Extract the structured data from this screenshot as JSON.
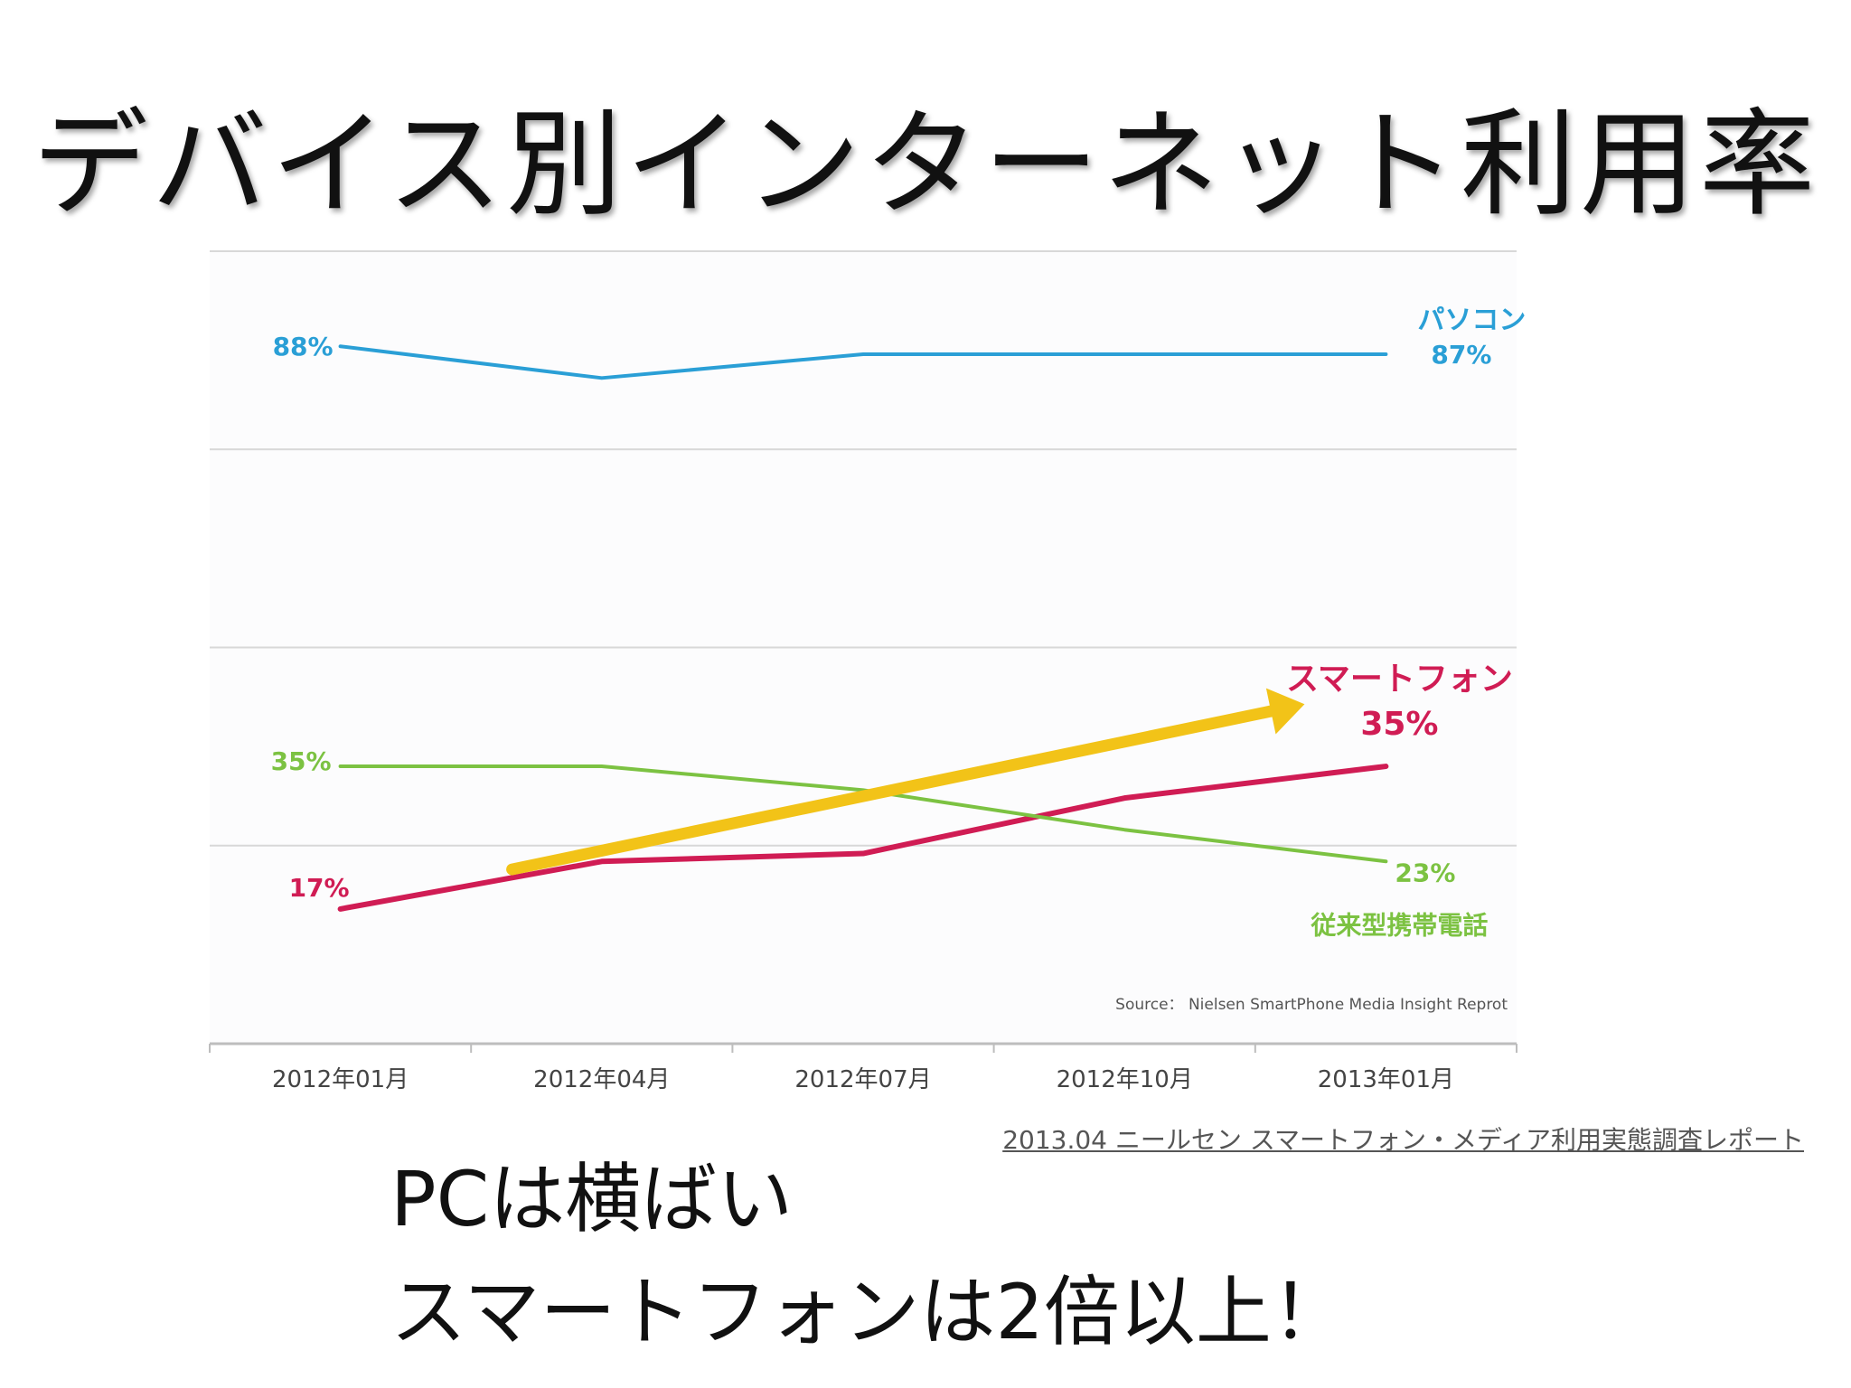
{
  "title": "デバイス別インターネット利用率",
  "chart_data": {
    "type": "line",
    "x": [
      "2012年01月",
      "2012年04月",
      "2012年07月",
      "2012年10月",
      "2013年01月"
    ],
    "ylim": [
      0,
      100
    ],
    "grid": true,
    "series": [
      {
        "name": "パソコン",
        "values": [
          88,
          84,
          87,
          87,
          87
        ],
        "color": "#2a9fd6",
        "start_label": "88%",
        "end_label": "87%"
      },
      {
        "name": "スマートフォン",
        "values": [
          17,
          23,
          24,
          31,
          35
        ],
        "color": "#d01c54",
        "start_label": "17%",
        "end_label": "35%"
      },
      {
        "name": "従来型携帯電話",
        "values": [
          35,
          35,
          32,
          27,
          23
        ],
        "color": "#7cc242",
        "start_label": "35%",
        "end_label": "23%"
      }
    ],
    "trend_arrow": {
      "from": [
        "2012年01月",
        22
      ],
      "to": [
        "2013年01月",
        36
      ],
      "color": "#f2c318"
    },
    "source_note": "Source： Nielsen SmartPhone Media Insight Reprot"
  },
  "source_link": "2013.04 ニールセン スマートフォン・メディア利用実態調査レポート",
  "conclusions": [
    "PCは横ばい",
    "スマートフォンは2倍以上！"
  ]
}
